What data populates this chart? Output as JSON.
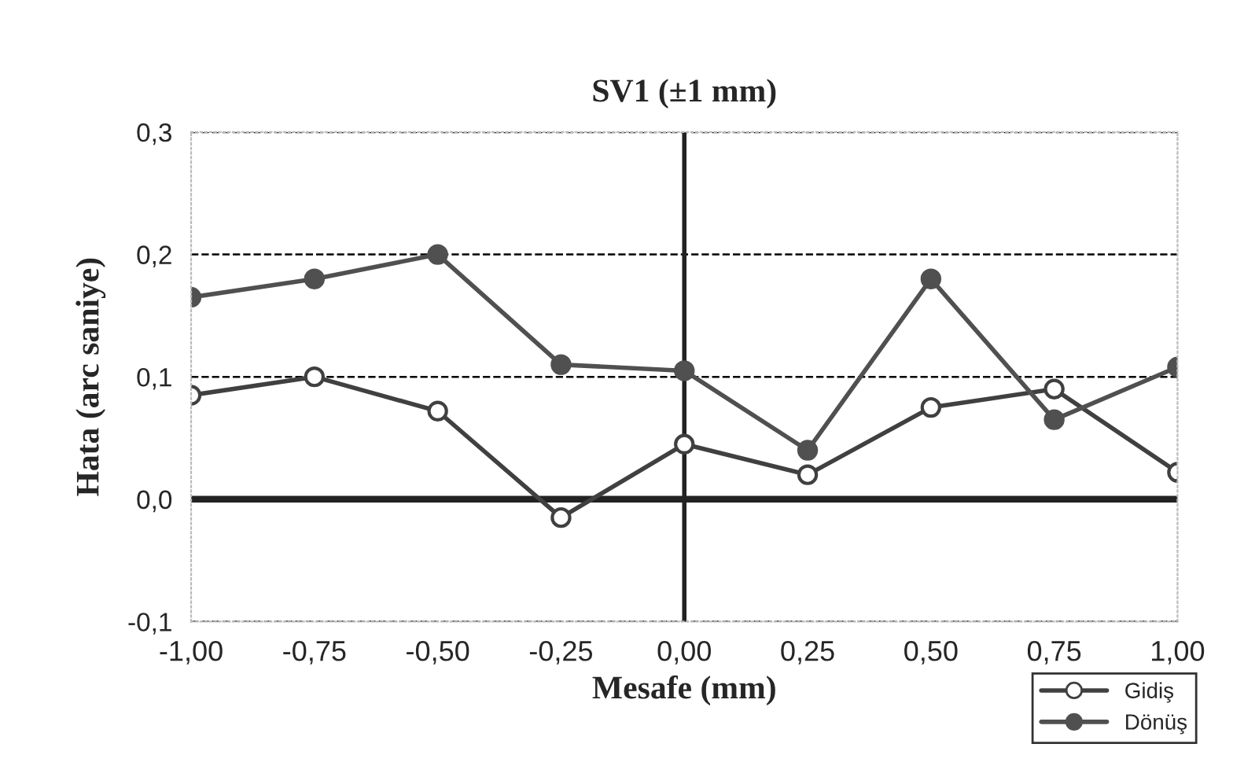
{
  "chart_data": {
    "type": "line",
    "title": "SV1 (±1 mm)",
    "xlabel": "Mesafe (mm)",
    "ylabel": "Hata (arc saniye)",
    "x": [
      -1,
      -0.75,
      -0.5,
      -0.25,
      0,
      0.25,
      0.5,
      0.75,
      1
    ],
    "series": [
      {
        "name": "Gidiş",
        "color": "#404040",
        "marker": "circle",
        "values": [
          0.085,
          0.1,
          0.072,
          -0.015,
          0.045,
          0.02,
          0.075,
          0.09,
          0.022
        ]
      },
      {
        "name": "Dönüş",
        "color": "#505050",
        "marker": "circle",
        "values": [
          0.165,
          0.18,
          0.2,
          0.11,
          0.105,
          0.04,
          0.18,
          0.065,
          0.108
        ]
      }
    ],
    "xlim": [
      -1,
      1
    ],
    "ylim": [
      -0.1,
      0.3
    ],
    "xticks": [
      {
        "value": -1,
        "label": "-1,00"
      },
      {
        "value": -0.75,
        "label": "-0,75"
      },
      {
        "value": -0.5,
        "label": "-0,50"
      },
      {
        "value": -0.25,
        "label": "-0,25"
      },
      {
        "value": 0,
        "label": "0,00"
      },
      {
        "value": 0.25,
        "label": "0,25"
      },
      {
        "value": 0.5,
        "label": "0,50"
      },
      {
        "value": 0.75,
        "label": "0,75"
      },
      {
        "value": 1,
        "label": "1,00"
      }
    ],
    "yticks": [
      {
        "value": -0.1,
        "label": "-0,1"
      },
      {
        "value": 0,
        "label": "0,0"
      },
      {
        "value": 0.1,
        "label": "0,1"
      },
      {
        "value": 0.2,
        "label": "0,2"
      },
      {
        "value": 0.3,
        "label": "0,3"
      }
    ],
    "grid": "y",
    "legend": "bottom right"
  }
}
